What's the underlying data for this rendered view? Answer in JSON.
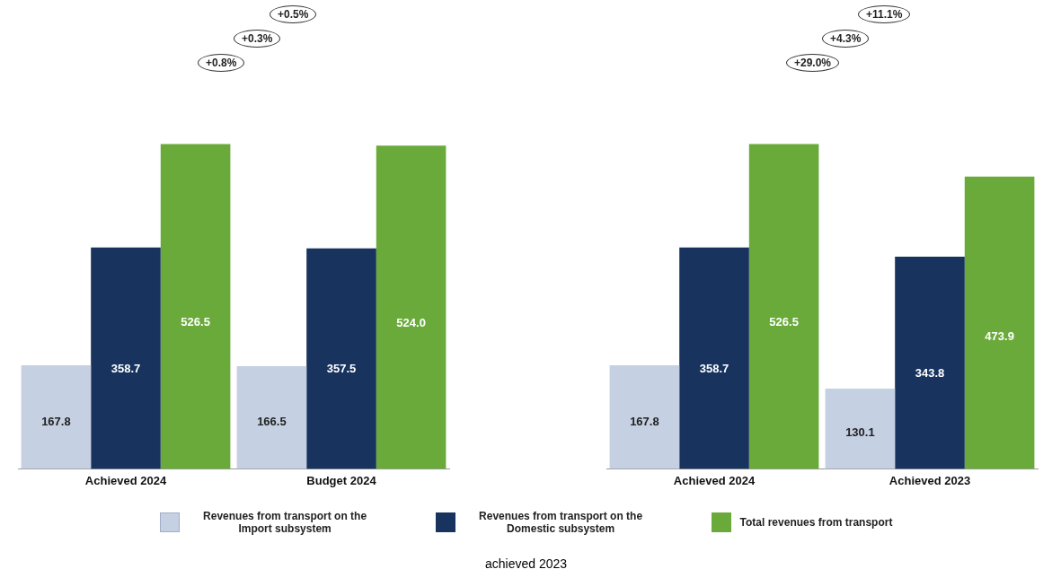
{
  "chart_data": [
    {
      "type": "bar",
      "categories": [
        "Achieved 2024",
        "Budget 2024"
      ],
      "series": [
        {
          "name": "Revenues from transport on the Import subsystem",
          "color": "#c5d0e3",
          "values": [
            167.8,
            166.5
          ],
          "value_labels": [
            "167.8",
            "166.5"
          ]
        },
        {
          "name": "Revenues from transport on the Domestic subsystem",
          "color": "#17335e",
          "values": [
            358.7,
            357.5
          ],
          "value_labels": [
            "358.7",
            "357.5"
          ]
        },
        {
          "name": "Total revenues from transport",
          "color": "#6aaa3a",
          "values": [
            526.5,
            524.0
          ],
          "value_labels": [
            "526.5",
            "524.0"
          ]
        }
      ],
      "tick_labels": "x",
      "legend": "bottom",
      "annotations": [
        "+0.5%",
        "+0.3%",
        "+0.8%"
      ]
    },
    {
      "type": "bar",
      "categories": [
        "Achieved 2024",
        "Achieved 2023"
      ],
      "series": [
        {
          "color": "#c5d0e3",
          "values": [
            167.8,
            130.1
          ],
          "value_labels": [
            "167.8",
            "130.1"
          ]
        },
        {
          "color": "#17335e",
          "values": [
            358.7,
            343.8
          ],
          "value_labels": [
            "358.7",
            "343.8"
          ]
        },
        {
          "color": "#6aaa3a",
          "values": [
            526.5,
            473.9
          ],
          "value_labels": [
            "526.5",
            "473.9"
          ]
        }
      ],
      "tick_labels": "x",
      "annotations": [
        "+11.1%",
        "+4.3%",
        "+29.0%",
        "achieved 2023"
      ]
    }
  ]
}
